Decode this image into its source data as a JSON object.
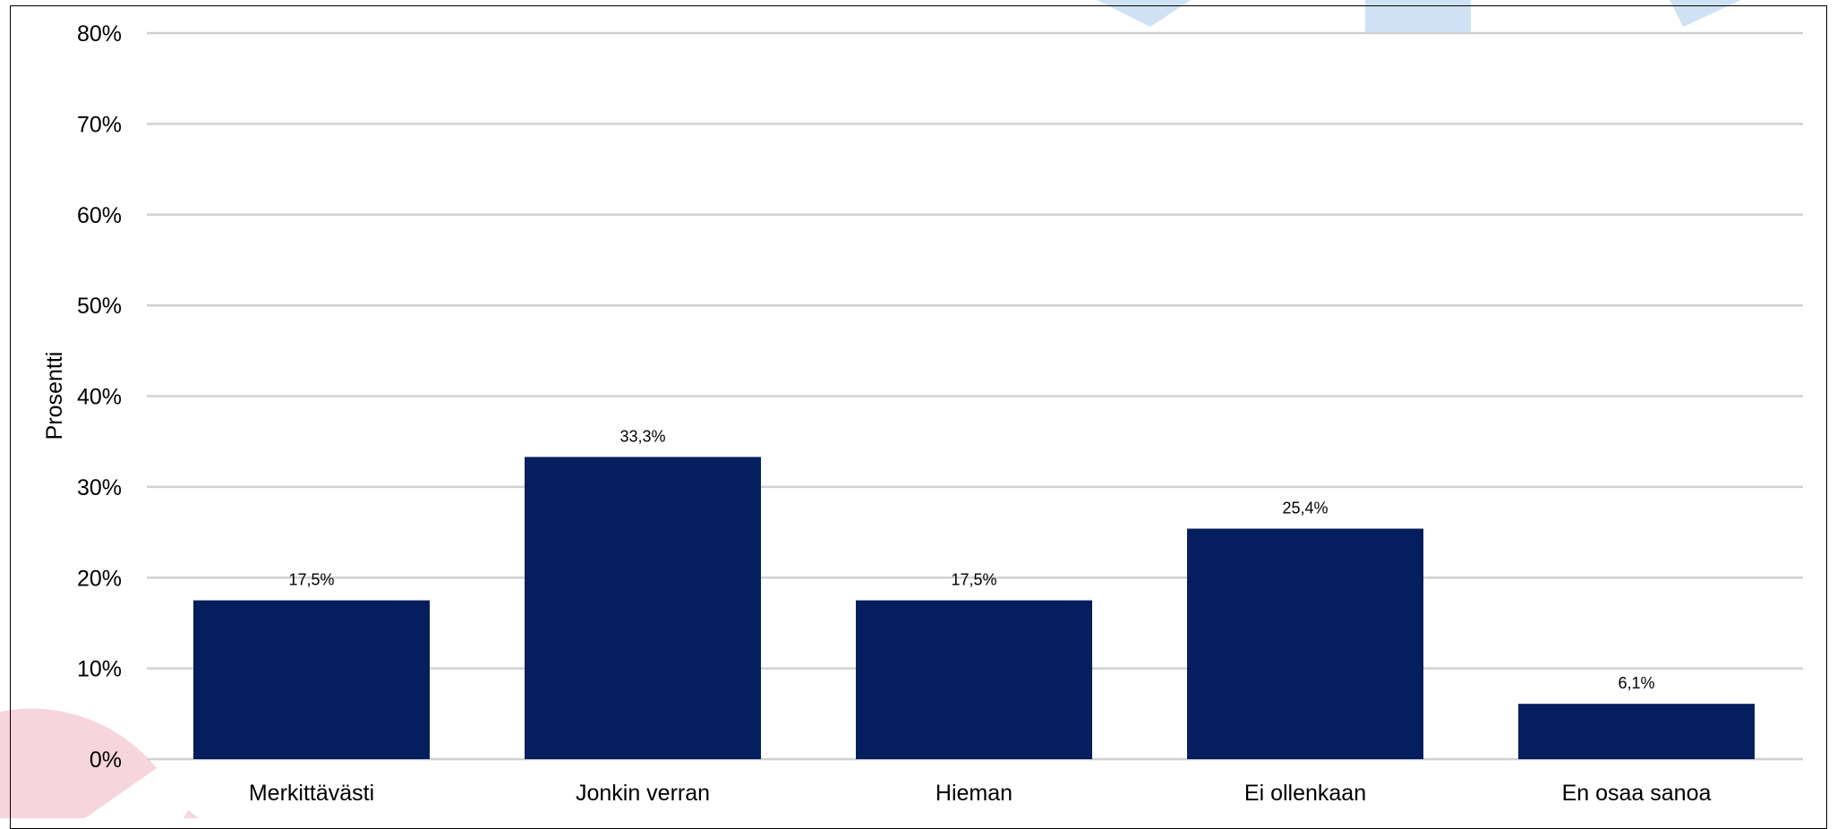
{
  "chart_data": {
    "type": "bar",
    "title": "",
    "xlabel": "",
    "ylabel": "Prosentti",
    "categories": [
      "Merkittävästi",
      "Jonkin verran",
      "Hieman",
      "Ei ollenkaan",
      "En osaa sanoa"
    ],
    "values": [
      17.5,
      33.3,
      17.5,
      25.4,
      6.1
    ],
    "data_labels": [
      "17,5%",
      "33,3%",
      "17,5%",
      "25,4%",
      "6,1%"
    ],
    "ylim": [
      0,
      80
    ],
    "y_ticks": [
      0,
      10,
      20,
      30,
      40,
      50,
      60,
      70,
      80
    ],
    "y_tick_labels": [
      "0%",
      "10%",
      "20%",
      "30%",
      "40%",
      "50%",
      "60%",
      "70%",
      "80%"
    ],
    "grid": true,
    "legend": "none",
    "colors": {
      "bar": "#041E5E",
      "grid": "#D0D0D0",
      "decor_blue": "#CFE2F5",
      "decor_pink": "#F6D6DC"
    }
  }
}
